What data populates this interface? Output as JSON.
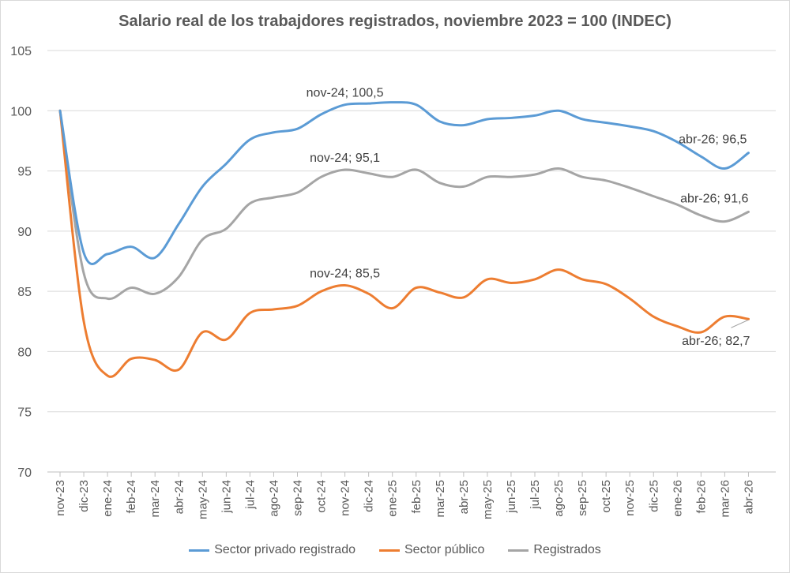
{
  "chart_data": {
    "type": "line",
    "title": "Salario real de los trabajdores registrados, noviembre 2023 = 100 (INDEC)",
    "xlabel": "",
    "ylabel": "",
    "ylim": [
      70,
      105
    ],
    "yticks": [
      70,
      75,
      80,
      85,
      90,
      95,
      100,
      105
    ],
    "grid": true,
    "legend_position": "bottom",
    "categories": [
      "nov-23",
      "dic-23",
      "ene-24",
      "feb-24",
      "mar-24",
      "abr-24",
      "may-24",
      "jun-24",
      "jul-24",
      "ago-24",
      "sep-24",
      "oct-24",
      "nov-24",
      "dic-24",
      "ene-25",
      "feb-25",
      "mar-25",
      "abr-25",
      "may-25",
      "jun-25",
      "jul-25",
      "ago-25",
      "sep-25",
      "oct-25",
      "nov-25",
      "dic-25",
      "ene-26",
      "feb-26",
      "mar-26",
      "abr-26"
    ],
    "series": [
      {
        "name": "Sector privado registrado",
        "color": "#5b9bd5",
        "values": [
          100,
          88.2,
          88.1,
          88.7,
          87.8,
          90.6,
          93.7,
          95.6,
          97.6,
          98.2,
          98.5,
          99.7,
          100.5,
          100.6,
          100.7,
          100.5,
          99.1,
          98.8,
          99.3,
          99.4,
          99.6,
          100.0,
          99.3,
          99.0,
          98.7,
          98.3,
          97.4,
          96.2,
          95.2,
          96.5
        ]
      },
      {
        "name": "Sector público",
        "color": "#ed7d31",
        "values": [
          100,
          82.5,
          78.0,
          79.4,
          79.3,
          78.5,
          81.6,
          81.0,
          83.2,
          83.5,
          83.8,
          85.0,
          85.5,
          84.8,
          83.6,
          85.3,
          84.9,
          84.5,
          86.0,
          85.7,
          86.0,
          86.8,
          86.0,
          85.6,
          84.4,
          82.9,
          82.1,
          81.6,
          82.9,
          82.7
        ]
      },
      {
        "name": "Registrados",
        "color": "#a5a5a5",
        "values": [
          100,
          86.5,
          84.4,
          85.3,
          84.8,
          86.2,
          89.3,
          90.2,
          92.3,
          92.8,
          93.2,
          94.5,
          95.1,
          94.8,
          94.5,
          95.1,
          94.0,
          93.7,
          94.5,
          94.5,
          94.7,
          95.2,
          94.5,
          94.2,
          93.6,
          92.9,
          92.2,
          91.3,
          90.8,
          91.6
        ]
      }
    ],
    "annotations": [
      {
        "text": "nov-24; 100,5",
        "series": 0,
        "index": 12
      },
      {
        "text": "abr-26; 96,5",
        "series": 0,
        "index": 29
      },
      {
        "text": "nov-24; 95,1",
        "series": 2,
        "index": 12
      },
      {
        "text": "abr-26; 91,6",
        "series": 2,
        "index": 29
      },
      {
        "text": "nov-24; 85,5",
        "series": 1,
        "index": 12
      },
      {
        "text": "abr-26; 82,7",
        "series": 1,
        "index": 29
      }
    ]
  }
}
